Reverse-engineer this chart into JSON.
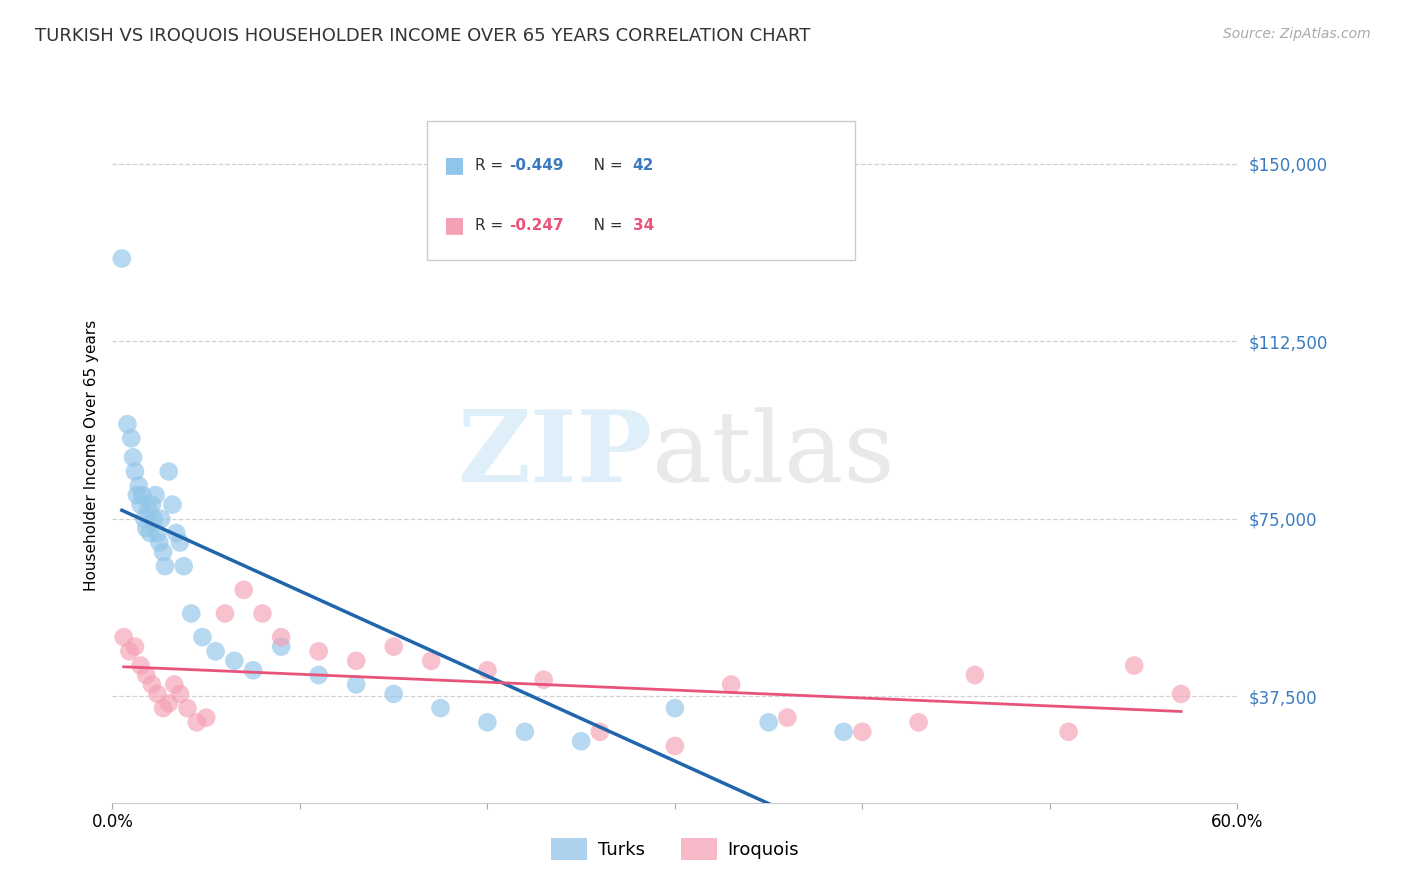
{
  "title": "TURKISH VS IROQUOIS HOUSEHOLDER INCOME OVER 65 YEARS CORRELATION CHART",
  "source": "Source: ZipAtlas.com",
  "ylabel_label": "Householder Income Over 65 years",
  "xlim": [
    0.0,
    0.6
  ],
  "ylim": [
    15000,
    162000
  ],
  "yticks": [
    37500,
    75000,
    112500,
    150000
  ],
  "ytick_labels": [
    "$37,500",
    "$75,000",
    "$112,500",
    "$150,000"
  ],
  "xticks": [
    0.0,
    0.1,
    0.2,
    0.3,
    0.4,
    0.5,
    0.6
  ],
  "xtick_labels": [
    "0.0%",
    "",
    "",
    "",
    "",
    "",
    "60.0%"
  ],
  "turks_color": "#90c4e8",
  "iroquois_color": "#f5a0b5",
  "turks_line_color": "#2166ac",
  "iroquois_line_color": "#e8537a",
  "dashed_line_color": "#bbbbbb",
  "background_color": "#ffffff",
  "grid_color": "#cccccc",
  "turks_x": [
    0.005,
    0.008,
    0.01,
    0.011,
    0.012,
    0.013,
    0.014,
    0.015,
    0.016,
    0.017,
    0.018,
    0.019,
    0.02,
    0.021,
    0.022,
    0.023,
    0.024,
    0.025,
    0.026,
    0.027,
    0.028,
    0.03,
    0.032,
    0.034,
    0.036,
    0.038,
    0.042,
    0.048,
    0.055,
    0.065,
    0.075,
    0.09,
    0.11,
    0.13,
    0.15,
    0.175,
    0.2,
    0.22,
    0.25,
    0.3,
    0.35,
    0.39
  ],
  "turks_y": [
    130000,
    95000,
    92000,
    88000,
    85000,
    80000,
    82000,
    78000,
    80000,
    75000,
    73000,
    77000,
    72000,
    78000,
    75000,
    80000,
    72000,
    70000,
    75000,
    68000,
    65000,
    85000,
    78000,
    72000,
    70000,
    65000,
    55000,
    50000,
    47000,
    45000,
    43000,
    48000,
    42000,
    40000,
    38000,
    35000,
    32000,
    30000,
    28000,
    35000,
    32000,
    30000
  ],
  "iroquois_x": [
    0.006,
    0.009,
    0.012,
    0.015,
    0.018,
    0.021,
    0.024,
    0.027,
    0.03,
    0.033,
    0.036,
    0.04,
    0.045,
    0.05,
    0.06,
    0.07,
    0.08,
    0.09,
    0.11,
    0.13,
    0.15,
    0.17,
    0.2,
    0.23,
    0.26,
    0.3,
    0.33,
    0.36,
    0.4,
    0.43,
    0.46,
    0.51,
    0.545,
    0.57
  ],
  "iroquois_y": [
    50000,
    47000,
    48000,
    44000,
    42000,
    40000,
    38000,
    35000,
    36000,
    40000,
    38000,
    35000,
    32000,
    33000,
    55000,
    60000,
    55000,
    50000,
    47000,
    45000,
    48000,
    45000,
    43000,
    41000,
    30000,
    27000,
    40000,
    33000,
    30000,
    32000,
    42000,
    30000,
    44000,
    38000
  ]
}
